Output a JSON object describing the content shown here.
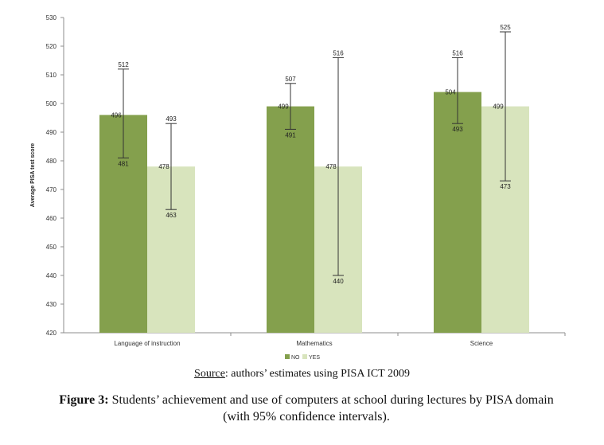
{
  "chart_data": {
    "type": "bar",
    "ylabel": "Average PISA test score",
    "ylim": [
      420,
      530
    ],
    "yticks": [
      420,
      430,
      440,
      450,
      460,
      470,
      480,
      490,
      500,
      510,
      520,
      530
    ],
    "grid": false,
    "legend_position": "bottom",
    "categories": [
      "Language of instruction",
      "Mathematics",
      "Science"
    ],
    "series": [
      {
        "name": "NO",
        "color": "#84a04d",
        "values": [
          496,
          499,
          504
        ],
        "ci_low": [
          481,
          491,
          493
        ],
        "ci_high": [
          512,
          507,
          516
        ]
      },
      {
        "name": "YES",
        "color": "#d8e4bd",
        "values": [
          478,
          478,
          499
        ],
        "ci_low": [
          463,
          440,
          473
        ],
        "ci_high": [
          493,
          516,
          525
        ]
      }
    ]
  },
  "source": {
    "label": "Source",
    "text": ": authors’ estimates using PISA ICT 2009"
  },
  "caption": {
    "label": "Figure 3:",
    "line1": " Students’ achievement and use of computers at school during lectures by PISA domain",
    "line2": "(with 95% confidence intervals)."
  }
}
